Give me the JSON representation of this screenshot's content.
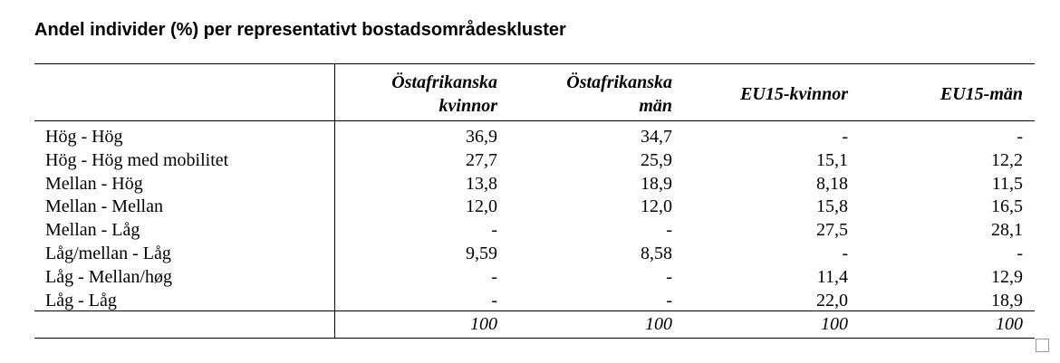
{
  "title": "Andel individer (%) per representativt bostadsområdeskluster",
  "table": {
    "header": [
      [
        "Östafrikanska",
        "kvinnor"
      ],
      [
        "Östafrikanska",
        "män"
      ],
      [
        "EU15-kvinnor"
      ],
      [
        "EU15-män"
      ]
    ],
    "rows": [
      [
        "Hög - Hög",
        "36,9",
        "34,7",
        "-",
        "-"
      ],
      [
        "Hög - Hög med mobilitet",
        "27,7",
        "25,9",
        "15,1",
        "12,2"
      ],
      [
        "Mellan - Hög",
        "13,8",
        "18,9",
        "8,18",
        "11,5"
      ],
      [
        "Mellan - Mellan",
        "12,0",
        "12,0",
        "15,8",
        "16,5"
      ],
      [
        "Mellan - Låg",
        "-",
        "-",
        "27,5",
        "28,1"
      ],
      [
        "Låg/mellan - Låg",
        "9,59",
        "8,58",
        "-",
        "-"
      ],
      [
        "Låg - Mellan/høg",
        "-",
        "-",
        "11,4",
        "12,9"
      ],
      [
        "Låg - Låg",
        "-",
        "-",
        "22,0",
        "18,9"
      ]
    ],
    "total": [
      "100",
      "100",
      "100",
      "100"
    ]
  }
}
